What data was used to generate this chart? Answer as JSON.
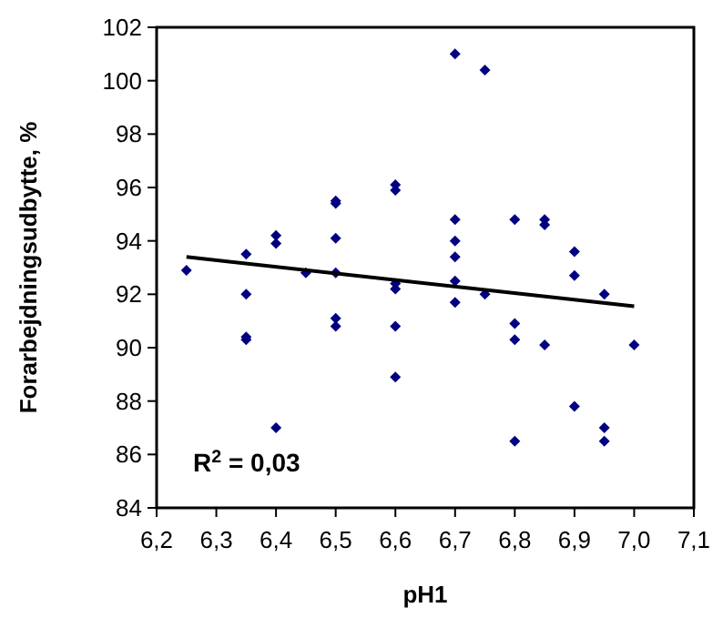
{
  "chart_data": {
    "type": "scatter",
    "xlabel": "pH1",
    "ylabel": "Forarbejdningsudbytte, %",
    "grid": false,
    "annotations": [
      "R$^{2}$ = 0,03"
    ],
    "xlim": [
      6.2,
      7.1
    ],
    "xticks": [
      {
        "value": 6.2,
        "label": "6,2"
      },
      {
        "value": 6.3,
        "label": "6,3"
      },
      {
        "value": 6.4,
        "label": "6,4"
      },
      {
        "value": 6.5,
        "label": "6,5"
      },
      {
        "value": 6.6,
        "label": "6,6"
      },
      {
        "value": 6.7,
        "label": "6,7"
      },
      {
        "value": 6.8,
        "label": "6,8"
      },
      {
        "value": 6.9,
        "label": "6,9"
      },
      {
        "value": 7.0,
        "label": "7,0"
      },
      {
        "value": 7.1,
        "label": "7,1"
      }
    ],
    "ylim": [
      84,
      102
    ],
    "yticks": [
      84,
      86,
      88,
      90,
      92,
      94,
      96,
      98,
      100,
      102
    ],
    "series": [
      {
        "marker": "diamond",
        "color": "#000080",
        "x": [
          6.25,
          6.35,
          6.35,
          6.35,
          6.35,
          6.4,
          6.4,
          6.4,
          6.45,
          6.5,
          6.5,
          6.5,
          6.5,
          6.5,
          6.5,
          6.6,
          6.6,
          6.6,
          6.6,
          6.6,
          6.6,
          6.7,
          6.7,
          6.7,
          6.7,
          6.7,
          6.7,
          6.75,
          6.75,
          6.8,
          6.8,
          6.8,
          6.8,
          6.85,
          6.85,
          6.85,
          6.9,
          6.9,
          6.9,
          6.95,
          6.95,
          6.95,
          7.0
        ],
        "values": [
          92.9,
          93.5,
          92.0,
          90.4,
          90.3,
          94.2,
          93.9,
          87.0,
          92.8,
          95.5,
          95.4,
          94.1,
          92.8,
          91.1,
          90.8,
          96.1,
          95.9,
          92.4,
          92.2,
          90.8,
          88.9,
          101.0,
          94.8,
          94.0,
          93.4,
          92.5,
          91.7,
          100.4,
          92.0,
          94.8,
          90.9,
          90.3,
          86.5,
          94.8,
          94.6,
          90.1,
          93.6,
          92.7,
          87.8,
          92.0,
          87.0,
          86.5,
          90.1
        ]
      },
      {
        "type": "line",
        "marker": "none",
        "color": "#000000",
        "x": [
          6.25,
          7.0
        ],
        "values": [
          93.4,
          91.55
        ]
      }
    ]
  }
}
